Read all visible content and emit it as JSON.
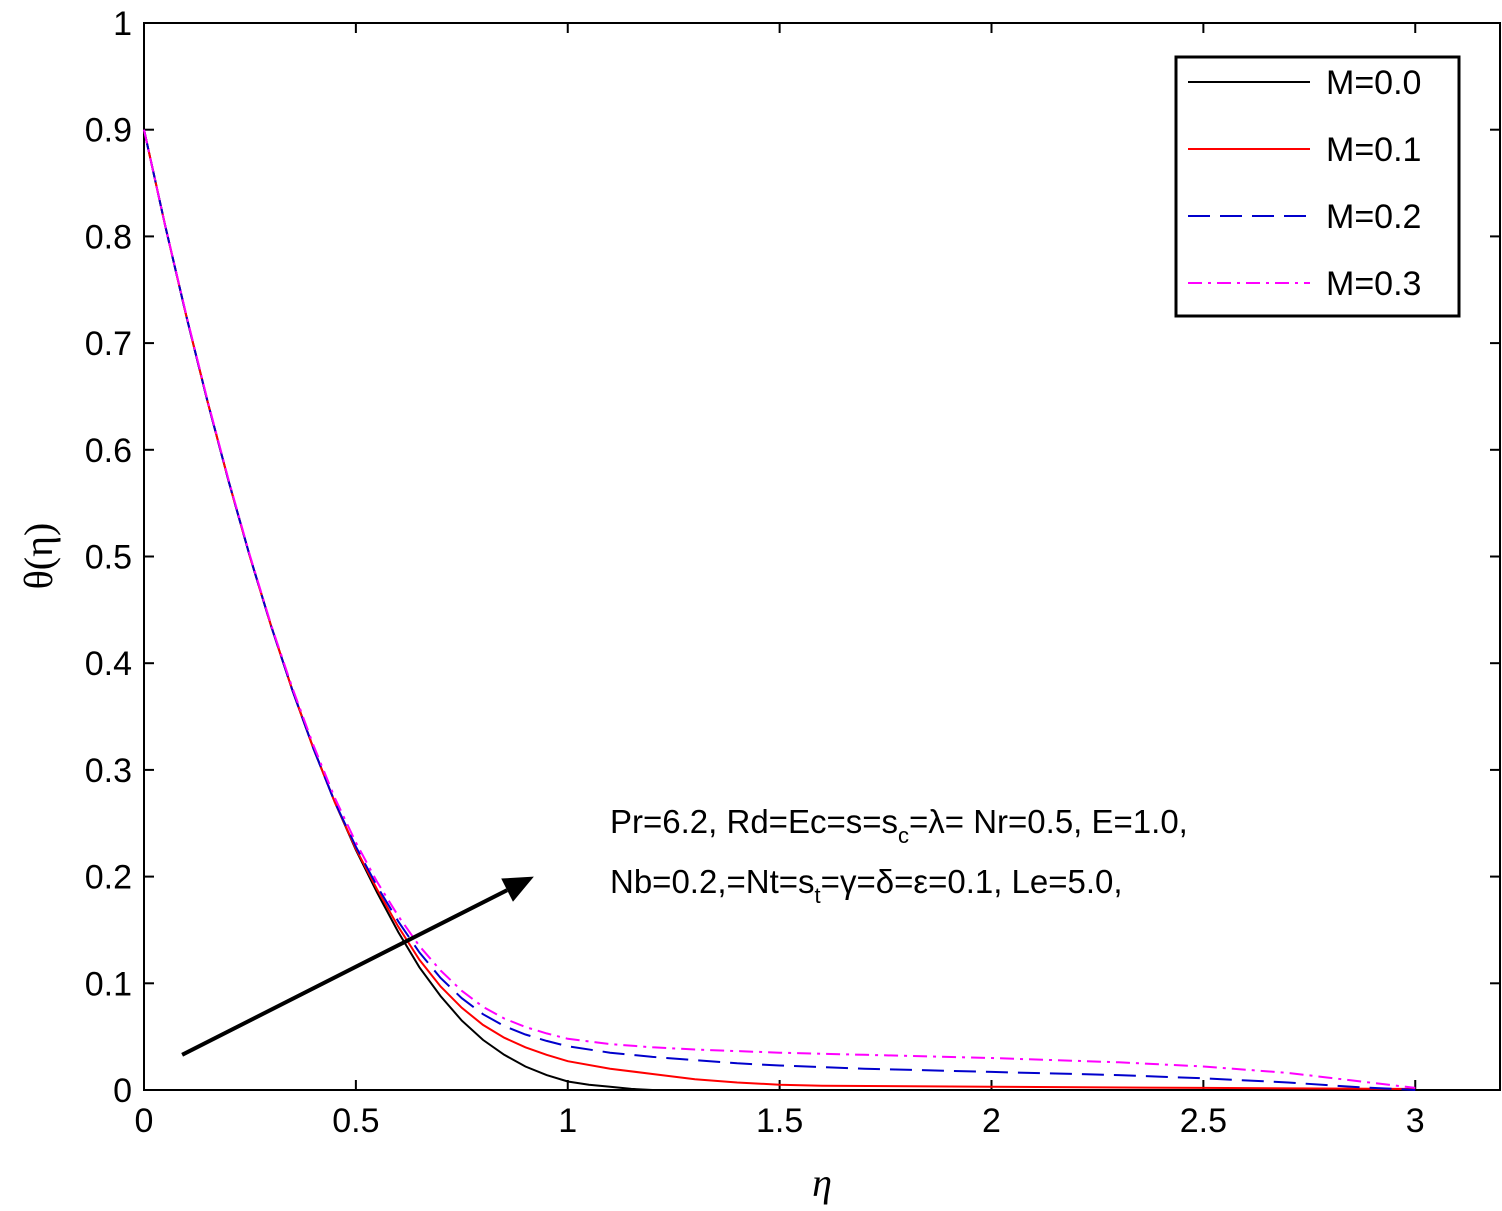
{
  "chart_data": {
    "type": "line",
    "xlabel": "η",
    "ylabel": "θ(η)",
    "xlim": [
      0,
      3.2
    ],
    "ylim": [
      0,
      1
    ],
    "xticks": [
      "0",
      "0.5",
      "1",
      "1.5",
      "2",
      "2.5",
      "3"
    ],
    "xtick_values": [
      0,
      0.5,
      1,
      1.5,
      2,
      2.5,
      3
    ],
    "yticks": [
      "0",
      "0.1",
      "0.2",
      "0.3",
      "0.4",
      "0.5",
      "0.6",
      "0.7",
      "0.8",
      "0.9",
      "1"
    ],
    "ytick_values": [
      0,
      0.1,
      0.2,
      0.3,
      0.4,
      0.5,
      0.6,
      0.7,
      0.8,
      0.9,
      1
    ],
    "grid": false,
    "legend_position": "top-right",
    "series": [
      {
        "name": "M=0.0",
        "color": "#000000",
        "dash": "solid",
        "x": [
          0,
          0.05,
          0.1,
          0.15,
          0.2,
          0.25,
          0.3,
          0.35,
          0.4,
          0.45,
          0.5,
          0.55,
          0.6,
          0.65,
          0.7,
          0.75,
          0.8,
          0.85,
          0.9,
          0.95,
          1.0,
          1.05,
          1.1,
          1.15,
          1.2
        ],
        "y": [
          0.9,
          0.81,
          0.725,
          0.645,
          0.57,
          0.5,
          0.435,
          0.375,
          0.32,
          0.27,
          0.225,
          0.185,
          0.148,
          0.115,
          0.088,
          0.065,
          0.047,
          0.033,
          0.022,
          0.014,
          0.008,
          0.005,
          0.003,
          0.001,
          0.0
        ]
      },
      {
        "name": "M=0.1",
        "color": "#ff0000",
        "dash": "solid",
        "x": [
          0,
          0.05,
          0.1,
          0.15,
          0.2,
          0.25,
          0.3,
          0.35,
          0.4,
          0.45,
          0.5,
          0.55,
          0.6,
          0.65,
          0.7,
          0.75,
          0.8,
          0.85,
          0.9,
          0.95,
          1.0,
          1.1,
          1.2,
          1.3,
          1.4,
          1.5,
          1.6,
          2.0,
          2.5,
          3.0
        ],
        "y": [
          0.9,
          0.81,
          0.725,
          0.645,
          0.57,
          0.5,
          0.435,
          0.375,
          0.32,
          0.27,
          0.226,
          0.188,
          0.153,
          0.122,
          0.097,
          0.077,
          0.061,
          0.049,
          0.04,
          0.033,
          0.027,
          0.02,
          0.015,
          0.01,
          0.007,
          0.005,
          0.004,
          0.003,
          0.002,
          0.001
        ]
      },
      {
        "name": "M=0.2",
        "color": "#0000cc",
        "dash": "dashed",
        "x": [
          0,
          0.05,
          0.1,
          0.15,
          0.2,
          0.25,
          0.3,
          0.35,
          0.4,
          0.45,
          0.5,
          0.55,
          0.6,
          0.65,
          0.7,
          0.75,
          0.8,
          0.85,
          0.9,
          0.95,
          1.0,
          1.1,
          1.2,
          1.3,
          1.4,
          1.5,
          1.7,
          2.0,
          2.3,
          2.5,
          2.7,
          2.85,
          3.0
        ],
        "y": [
          0.9,
          0.81,
          0.725,
          0.645,
          0.57,
          0.5,
          0.435,
          0.375,
          0.32,
          0.27,
          0.228,
          0.191,
          0.158,
          0.129,
          0.105,
          0.086,
          0.071,
          0.06,
          0.052,
          0.046,
          0.041,
          0.035,
          0.031,
          0.028,
          0.025,
          0.023,
          0.02,
          0.017,
          0.014,
          0.011,
          0.007,
          0.003,
          0.0
        ]
      },
      {
        "name": "M=0.3",
        "color": "#ff00ff",
        "dash": "dashdot",
        "x": [
          0,
          0.05,
          0.1,
          0.15,
          0.2,
          0.25,
          0.3,
          0.35,
          0.4,
          0.45,
          0.5,
          0.55,
          0.6,
          0.65,
          0.7,
          0.75,
          0.8,
          0.85,
          0.9,
          0.95,
          1.0,
          1.1,
          1.2,
          1.3,
          1.5,
          1.7,
          2.0,
          2.3,
          2.5,
          2.7,
          2.85,
          3.0
        ],
        "y": [
          0.9,
          0.81,
          0.726,
          0.646,
          0.571,
          0.501,
          0.436,
          0.377,
          0.323,
          0.274,
          0.232,
          0.195,
          0.163,
          0.135,
          0.112,
          0.093,
          0.078,
          0.067,
          0.059,
          0.053,
          0.048,
          0.043,
          0.04,
          0.038,
          0.035,
          0.033,
          0.03,
          0.026,
          0.022,
          0.016,
          0.009,
          0.002
        ]
      }
    ],
    "annotations": {
      "line1": [
        "Pr=6.2, Rd=Ec=s=s",
        "c",
        "=λ= Nr=0.5, E=1.0,"
      ],
      "line2": [
        "Nb=0.2,=Nt=s",
        "t",
        "=γ=δ=ε=0.1, Le=5.0,"
      ]
    },
    "arrow": {
      "from": [
        0.09,
        0.033
      ],
      "to": [
        0.92,
        0.2
      ]
    }
  }
}
